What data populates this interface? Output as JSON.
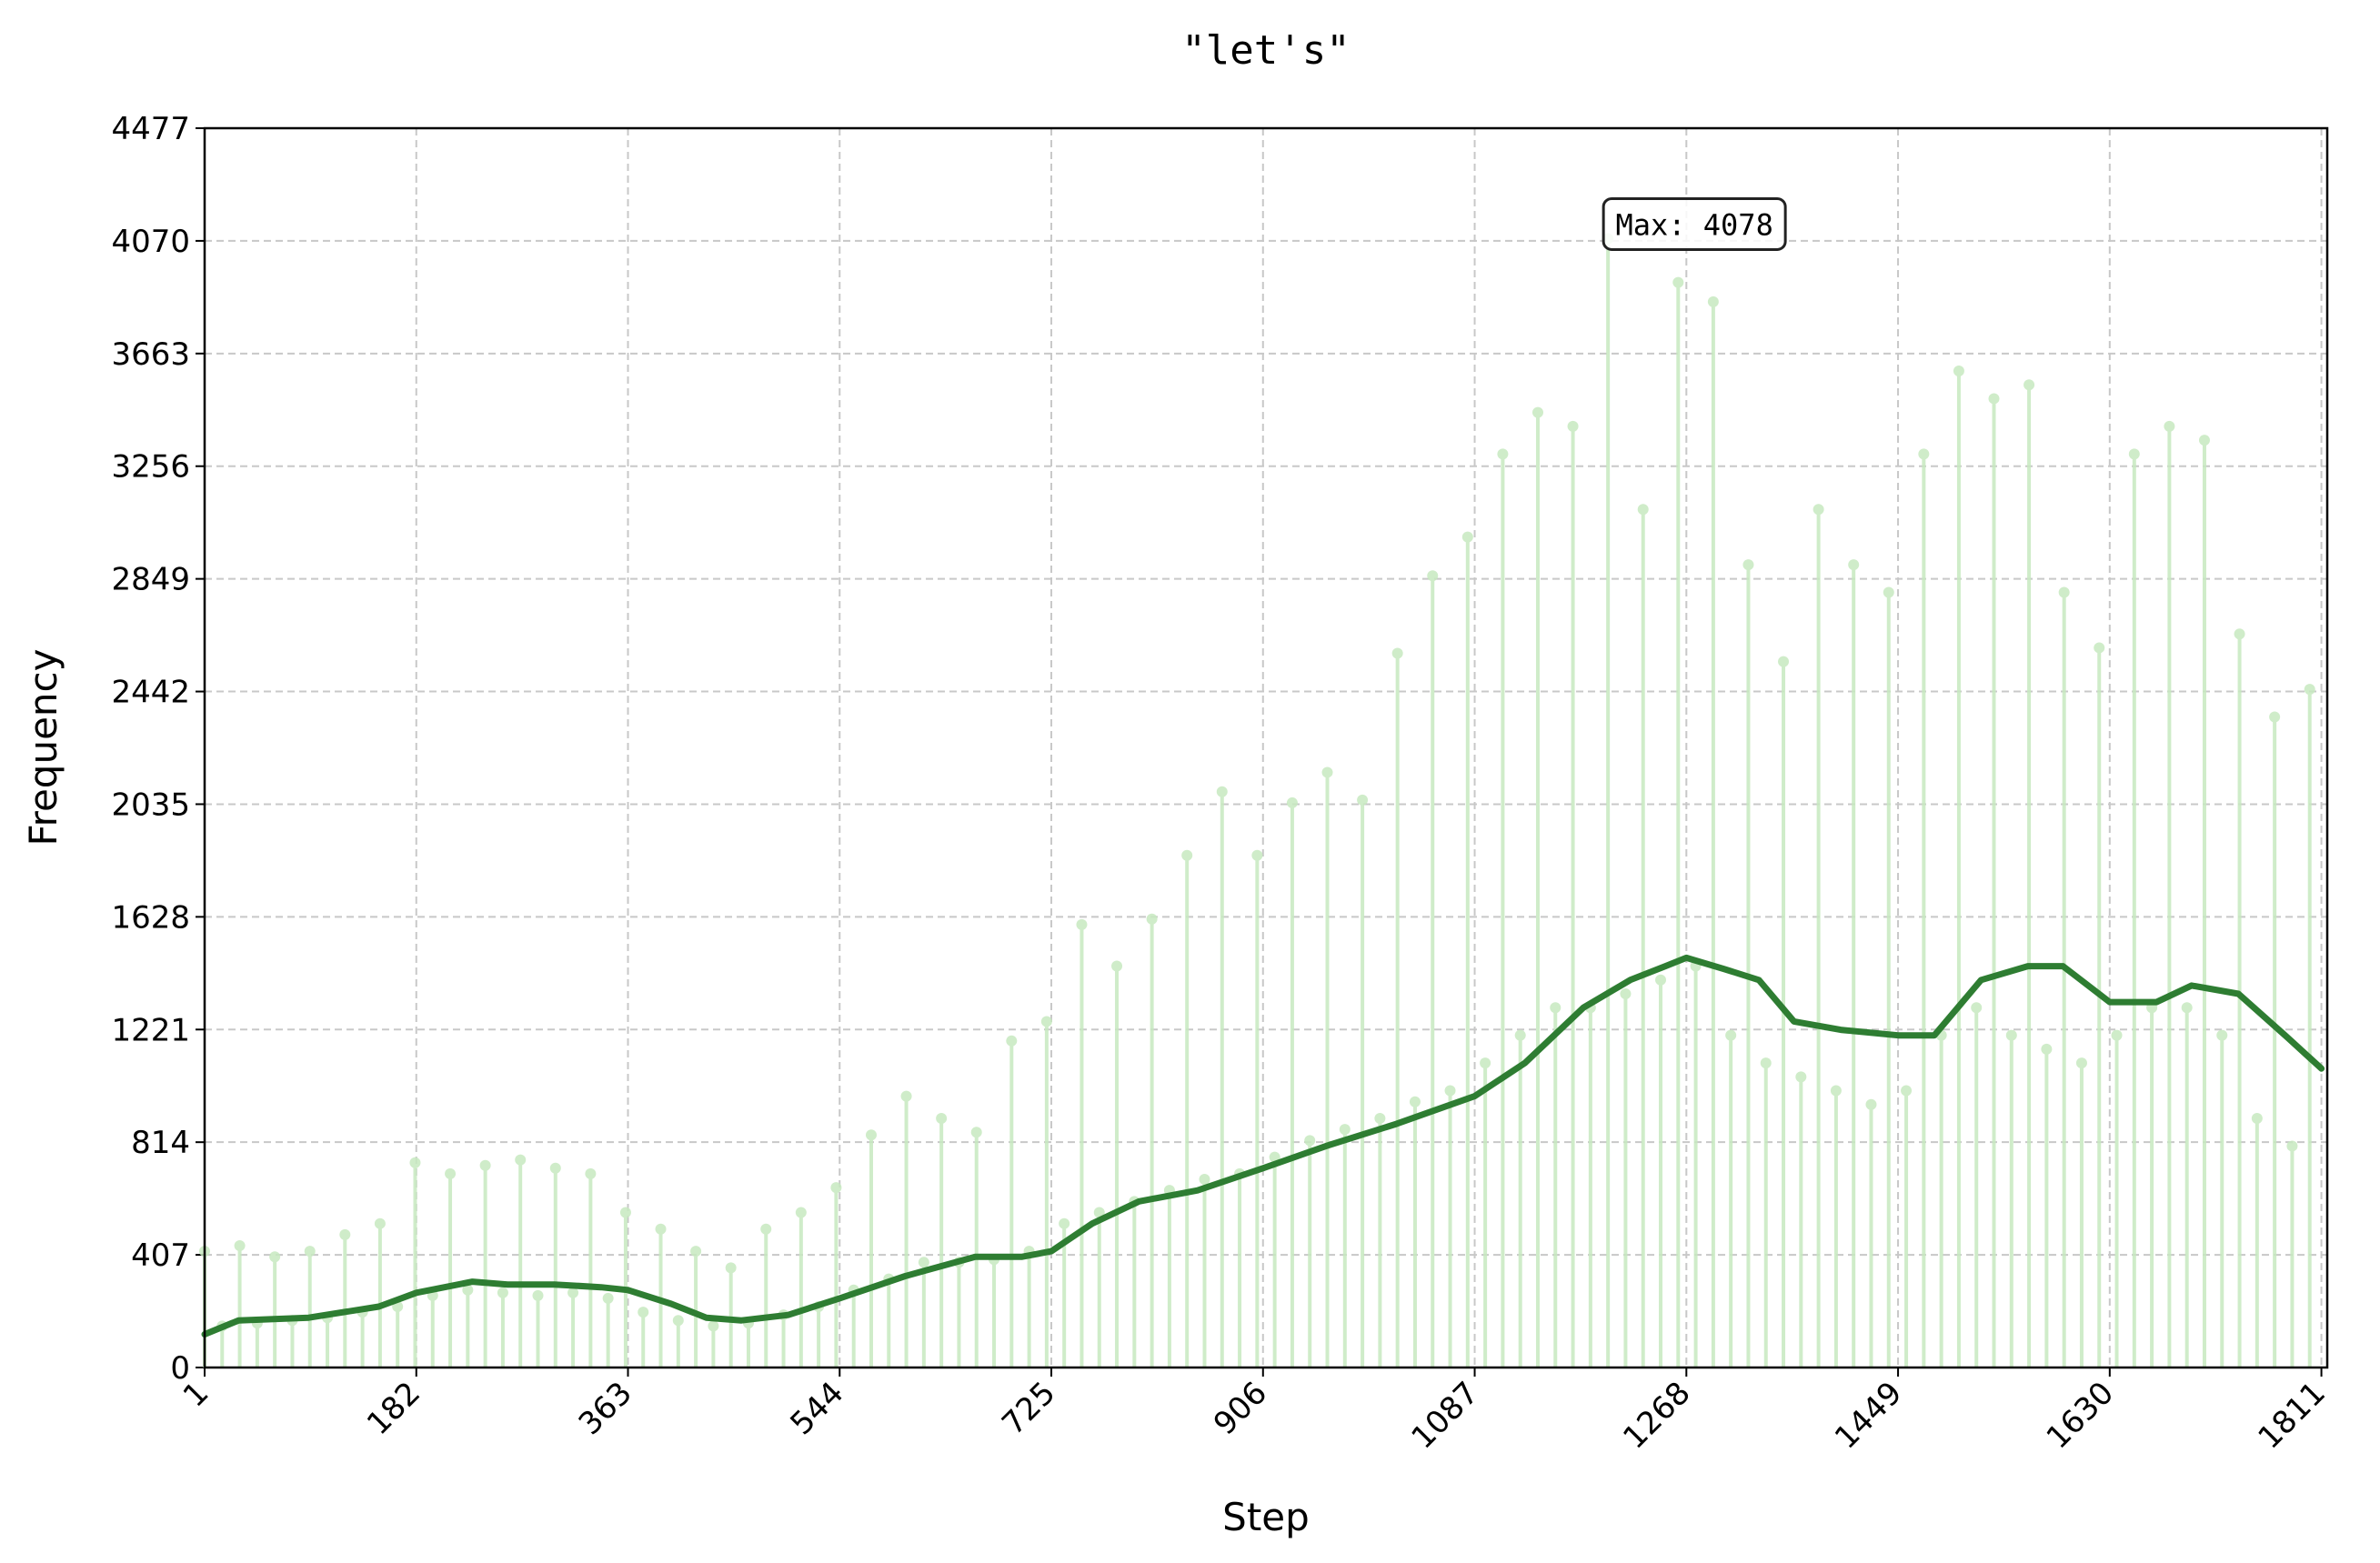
{
  "chart_data": {
    "type": "stem",
    "title": "\"let's\"",
    "x_label": "Step",
    "y_label": "Frequency",
    "xlim": [
      1,
      1816
    ],
    "ylim": [
      0,
      4477
    ],
    "xticks": [
      1,
      182,
      363,
      544,
      725,
      906,
      1087,
      1268,
      1449,
      1630,
      1811
    ],
    "yticks": [
      0,
      407,
      814,
      1221,
      1628,
      2035,
      2442,
      2849,
      3256,
      3663,
      4070,
      4477
    ],
    "grid": true,
    "series": [
      {
        "type": "stem",
        "color": "#c7e9c0",
        "x": [
          1,
          16,
          31,
          46,
          61,
          76,
          91,
          106,
          121,
          136,
          151,
          166,
          181,
          196,
          211,
          226,
          241,
          256,
          271,
          286,
          301,
          316,
          331,
          346,
          361,
          376,
          391,
          406,
          421,
          436,
          451,
          466,
          481,
          496,
          511,
          526,
          541,
          556,
          571,
          586,
          601,
          616,
          631,
          646,
          661,
          676,
          691,
          706,
          721,
          736,
          751,
          766,
          781,
          796,
          811,
          826,
          841,
          856,
          871,
          886,
          901,
          916,
          931,
          946,
          961,
          976,
          991,
          1006,
          1021,
          1036,
          1051,
          1066,
          1081,
          1096,
          1111,
          1126,
          1141,
          1156,
          1171,
          1186,
          1201,
          1216,
          1231,
          1246,
          1261,
          1276,
          1291,
          1306,
          1321,
          1336,
          1351,
          1366,
          1381,
          1396,
          1411,
          1426,
          1441,
          1456,
          1471,
          1486,
          1501,
          1516,
          1531,
          1546,
          1561,
          1576,
          1591,
          1606,
          1621,
          1636,
          1651,
          1666,
          1681,
          1696,
          1711,
          1726,
          1741,
          1756,
          1771,
          1786,
          1801
        ],
        "values": [
          420,
          150,
          440,
          160,
          400,
          170,
          420,
          180,
          480,
          200,
          520,
          220,
          740,
          260,
          700,
          280,
          730,
          270,
          750,
          260,
          720,
          270,
          700,
          250,
          560,
          200,
          500,
          170,
          420,
          150,
          360,
          160,
          500,
          190,
          560,
          220,
          650,
          280,
          840,
          320,
          980,
          380,
          900,
          380,
          850,
          390,
          1180,
          420,
          1250,
          520,
          1600,
          560,
          1450,
          600,
          1620,
          640,
          1850,
          680,
          2080,
          700,
          1850,
          760,
          2040,
          820,
          2150,
          860,
          2050,
          900,
          2580,
          960,
          2860,
          1000,
          3000,
          1100,
          3300,
          1200,
          3450,
          1300,
          3400,
          1300,
          4078,
          1350,
          3100,
          1400,
          3920,
          1450,
          3850,
          1200,
          2900,
          1100,
          2550,
          1050,
          3100,
          1000,
          2900,
          950,
          2800,
          1000,
          3300,
          1200,
          3600,
          1300,
          3500,
          1200,
          3550,
          1150,
          2800,
          1100,
          2600,
          1200,
          3300,
          1300,
          3400,
          1300,
          3350,
          1200,
          2650,
          900,
          2350,
          800,
          2450
        ]
      },
      {
        "type": "line",
        "color": "#2e7d32",
        "x": [
          1,
          30,
          90,
          150,
          182,
          230,
          260,
          300,
          340,
          363,
          400,
          430,
          460,
          500,
          544,
          600,
          660,
          700,
          725,
          760,
          800,
          850,
          906,
          960,
          1020,
          1087,
          1130,
          1180,
          1220,
          1250,
          1268,
          1300,
          1330,
          1360,
          1400,
          1449,
          1480,
          1520,
          1560,
          1590,
          1630,
          1670,
          1700,
          1740,
          1780,
          1811
        ],
        "values": [
          120,
          170,
          180,
          220,
          270,
          310,
          300,
          300,
          290,
          280,
          230,
          180,
          170,
          190,
          250,
          330,
          400,
          400,
          420,
          520,
          600,
          640,
          720,
          800,
          880,
          980,
          1100,
          1300,
          1400,
          1450,
          1480,
          1440,
          1400,
          1250,
          1220,
          1200,
          1200,
          1400,
          1450,
          1450,
          1320,
          1320,
          1380,
          1350,
          1200,
          1080
        ]
      }
    ],
    "annotation": {
      "text": "Max: 4078",
      "x": 1201,
      "y": 4078
    }
  }
}
